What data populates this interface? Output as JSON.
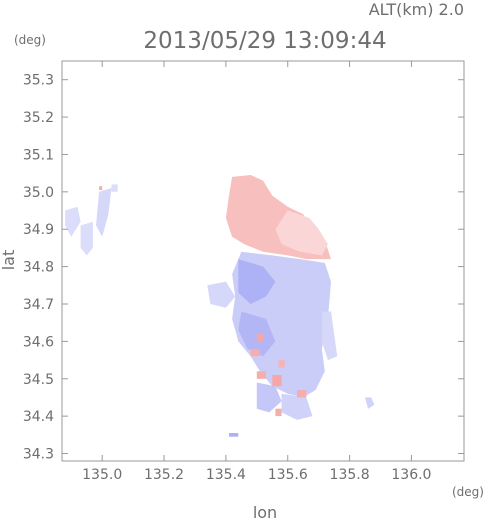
{
  "chart_data": {
    "type": "heatmap",
    "title": "2013/05/29 13:09:44",
    "altitude_label": "ALT(km) 2.0",
    "xlabel": "lon",
    "ylabel": "lat",
    "x_unit": "(deg)",
    "y_unit": "(deg)",
    "xlim": [
      134.87,
      136.17
    ],
    "ylim": [
      34.28,
      35.35
    ],
    "x_ticks": [
      135.0,
      135.2,
      135.4,
      135.6,
      135.8,
      136.0
    ],
    "y_ticks": [
      34.3,
      34.4,
      34.5,
      34.6,
      34.7,
      34.8,
      34.9,
      35.0,
      35.1,
      35.2,
      35.3
    ],
    "x_tick_labels": [
      "135.0",
      "135.2",
      "135.4",
      "135.6",
      "135.8",
      "136.0"
    ],
    "y_tick_labels": [
      "34.3",
      "34.4",
      "34.5",
      "34.6",
      "34.7",
      "34.8",
      "34.9",
      "35.0",
      "35.1",
      "35.2",
      "35.3"
    ],
    "grid": false,
    "colors": {
      "positive": "#f28a8a",
      "negative": "#8a8ff0",
      "frame": "#9a9a9a"
    },
    "regions": [
      {
        "sign": "positive",
        "intensity": 0.55,
        "poly": [
          [
            135.42,
            35.04
          ],
          [
            135.48,
            35.045
          ],
          [
            135.52,
            35.03
          ],
          [
            135.55,
            34.99
          ],
          [
            135.6,
            34.96
          ],
          [
            135.65,
            34.94
          ],
          [
            135.68,
            34.9
          ],
          [
            135.72,
            34.87
          ],
          [
            135.74,
            34.82
          ],
          [
            135.66,
            34.82
          ],
          [
            135.6,
            34.83
          ],
          [
            135.52,
            34.84
          ],
          [
            135.46,
            34.86
          ],
          [
            135.42,
            34.88
          ],
          [
            135.4,
            34.93
          ],
          [
            135.41,
            34.99
          ]
        ]
      },
      {
        "sign": "positive",
        "intensity": 0.35,
        "poly": [
          [
            135.6,
            34.95
          ],
          [
            135.67,
            34.93
          ],
          [
            135.7,
            34.9
          ],
          [
            135.73,
            34.86
          ],
          [
            135.71,
            34.83
          ],
          [
            135.64,
            34.84
          ],
          [
            135.58,
            34.86
          ],
          [
            135.56,
            34.9
          ]
        ]
      },
      {
        "sign": "negative",
        "intensity": 0.45,
        "poly": [
          [
            135.45,
            34.84
          ],
          [
            135.55,
            34.83
          ],
          [
            135.64,
            34.82
          ],
          [
            135.72,
            34.81
          ],
          [
            135.74,
            34.76
          ],
          [
            135.73,
            34.66
          ],
          [
            135.71,
            34.58
          ],
          [
            135.72,
            34.52
          ],
          [
            135.69,
            34.47
          ],
          [
            135.65,
            34.45
          ],
          [
            135.6,
            34.46
          ],
          [
            135.55,
            34.48
          ],
          [
            135.51,
            34.52
          ],
          [
            135.48,
            34.56
          ],
          [
            135.44,
            34.6
          ],
          [
            135.42,
            34.66
          ],
          [
            135.43,
            34.72
          ],
          [
            135.42,
            34.78
          ]
        ]
      },
      {
        "sign": "negative",
        "intensity": 0.7,
        "poly": [
          [
            135.44,
            34.82
          ],
          [
            135.52,
            34.8
          ],
          [
            135.56,
            34.76
          ],
          [
            135.53,
            34.72
          ],
          [
            135.48,
            34.7
          ],
          [
            135.44,
            34.73
          ]
        ]
      },
      {
        "sign": "negative",
        "intensity": 0.65,
        "poly": [
          [
            135.45,
            34.68
          ],
          [
            135.53,
            34.66
          ],
          [
            135.56,
            34.6
          ],
          [
            135.52,
            34.56
          ],
          [
            135.47,
            34.58
          ],
          [
            135.44,
            34.63
          ]
        ]
      },
      {
        "sign": "negative",
        "intensity": 0.35,
        "poly": [
          [
            135.34,
            34.75
          ],
          [
            135.4,
            34.76
          ],
          [
            135.43,
            34.72
          ],
          [
            135.4,
            34.69
          ],
          [
            135.35,
            34.7
          ]
        ]
      },
      {
        "sign": "negative",
        "intensity": 0.5,
        "poly": [
          [
            135.5,
            34.49
          ],
          [
            135.56,
            34.48
          ],
          [
            135.58,
            34.44
          ],
          [
            135.54,
            34.41
          ],
          [
            135.5,
            34.42
          ]
        ]
      },
      {
        "sign": "negative",
        "intensity": 0.4,
        "poly": [
          [
            135.58,
            34.46
          ],
          [
            135.66,
            34.45
          ],
          [
            135.68,
            34.4
          ],
          [
            135.63,
            34.39
          ],
          [
            135.58,
            34.41
          ]
        ]
      },
      {
        "sign": "negative",
        "intensity": 0.3,
        "poly": [
          [
            134.88,
            34.95
          ],
          [
            134.92,
            34.96
          ],
          [
            134.93,
            34.92
          ],
          [
            134.9,
            34.88
          ],
          [
            134.88,
            34.91
          ]
        ]
      },
      {
        "sign": "negative",
        "intensity": 0.3,
        "poly": [
          [
            134.93,
            34.91
          ],
          [
            134.97,
            34.92
          ],
          [
            134.97,
            34.85
          ],
          [
            134.95,
            34.83
          ],
          [
            134.93,
            34.85
          ]
        ]
      },
      {
        "sign": "negative",
        "intensity": 0.35,
        "poly": [
          [
            134.99,
            35.0
          ],
          [
            135.03,
            35.01
          ],
          [
            135.02,
            34.94
          ],
          [
            135.0,
            34.88
          ],
          [
            134.98,
            34.91
          ]
        ]
      },
      {
        "sign": "negative",
        "intensity": 0.3,
        "poly": [
          [
            135.03,
            35.02
          ],
          [
            135.05,
            35.02
          ],
          [
            135.05,
            35.0
          ],
          [
            135.03,
            35.0
          ]
        ]
      },
      {
        "sign": "negative",
        "intensity": 0.35,
        "poly": [
          [
            135.71,
            34.68
          ],
          [
            135.74,
            34.68
          ],
          [
            135.76,
            34.56
          ],
          [
            135.73,
            34.55
          ],
          [
            135.71,
            34.6
          ]
        ]
      },
      {
        "sign": "negative",
        "intensity": 0.4,
        "poly": [
          [
            135.85,
            34.45
          ],
          [
            135.87,
            34.45
          ],
          [
            135.88,
            34.43
          ],
          [
            135.86,
            34.42
          ]
        ]
      },
      {
        "sign": "negative",
        "intensity": 0.7,
        "poly": [
          [
            135.41,
            34.355
          ],
          [
            135.44,
            34.355
          ],
          [
            135.44,
            34.345
          ],
          [
            135.41,
            34.345
          ]
        ]
      },
      {
        "sign": "positive",
        "intensity": 0.7,
        "poly": [
          [
            134.99,
            35.015
          ],
          [
            135.0,
            35.015
          ],
          [
            135.0,
            35.005
          ],
          [
            134.99,
            35.005
          ]
        ]
      },
      {
        "sign": "positive",
        "intensity": 0.75,
        "poly": [
          [
            135.5,
            34.62
          ],
          [
            135.52,
            34.62
          ],
          [
            135.52,
            34.6
          ],
          [
            135.5,
            34.6
          ]
        ]
      },
      {
        "sign": "positive",
        "intensity": 0.7,
        "poly": [
          [
            135.48,
            34.58
          ],
          [
            135.51,
            34.58
          ],
          [
            135.51,
            34.56
          ],
          [
            135.48,
            34.56
          ]
        ]
      },
      {
        "sign": "positive",
        "intensity": 0.7,
        "poly": [
          [
            135.5,
            34.52
          ],
          [
            135.53,
            34.52
          ],
          [
            135.53,
            34.5
          ],
          [
            135.5,
            34.5
          ]
        ]
      },
      {
        "sign": "positive",
        "intensity": 0.75,
        "poly": [
          [
            135.55,
            34.51
          ],
          [
            135.58,
            34.51
          ],
          [
            135.58,
            34.48
          ],
          [
            135.55,
            34.48
          ]
        ]
      },
      {
        "sign": "positive",
        "intensity": 0.7,
        "poly": [
          [
            135.63,
            34.47
          ],
          [
            135.66,
            34.47
          ],
          [
            135.66,
            34.45
          ],
          [
            135.63,
            34.45
          ]
        ]
      },
      {
        "sign": "positive",
        "intensity": 0.7,
        "poly": [
          [
            135.56,
            34.42
          ],
          [
            135.58,
            34.42
          ],
          [
            135.58,
            34.4
          ],
          [
            135.56,
            34.4
          ]
        ]
      },
      {
        "sign": "positive",
        "intensity": 0.65,
        "poly": [
          [
            135.57,
            34.55
          ],
          [
            135.59,
            34.55
          ],
          [
            135.59,
            34.53
          ],
          [
            135.57,
            34.53
          ]
        ]
      }
    ]
  }
}
